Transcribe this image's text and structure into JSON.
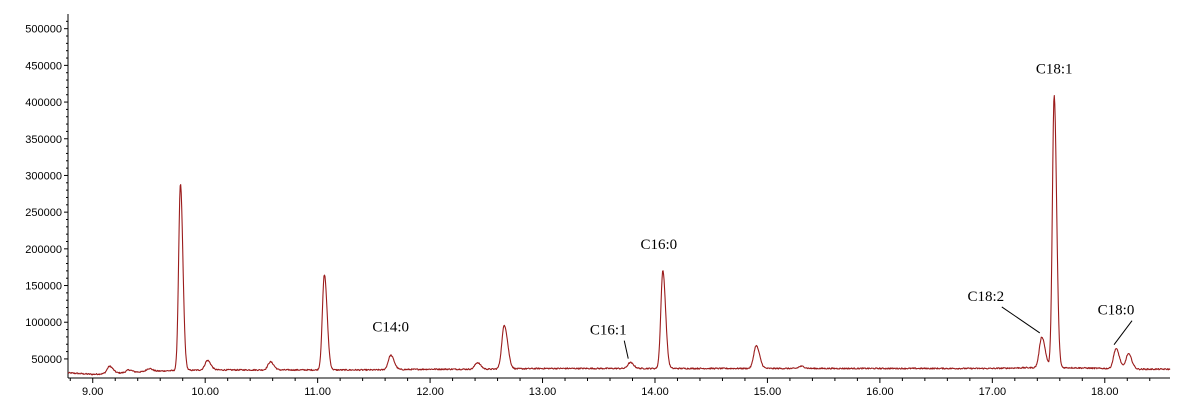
{
  "chart_data": {
    "type": "line",
    "title": "",
    "xlabel": "",
    "ylabel": "",
    "xlim": [
      8.78,
      18.58
    ],
    "ylim": [
      24000,
      520000
    ],
    "grid": false,
    "legend": "none",
    "line_color": "#9b1c1c",
    "x_ticks": [
      {
        "value": 9.0,
        "label": "9.00"
      },
      {
        "value": 10.0,
        "label": "10.00"
      },
      {
        "value": 11.0,
        "label": "11.00"
      },
      {
        "value": 12.0,
        "label": "12.00"
      },
      {
        "value": 13.0,
        "label": "13.00"
      },
      {
        "value": 14.0,
        "label": "14.00"
      },
      {
        "value": 15.0,
        "label": "15.00"
      },
      {
        "value": 16.0,
        "label": "16.00"
      },
      {
        "value": 17.0,
        "label": "17.00"
      },
      {
        "value": 18.0,
        "label": "18.00"
      }
    ],
    "y_ticks": [
      {
        "value": 50000,
        "label": "50000"
      },
      {
        "value": 100000,
        "label": "100000"
      },
      {
        "value": 150000,
        "label": "150000"
      },
      {
        "value": 200000,
        "label": "200000"
      },
      {
        "value": 250000,
        "label": "250000"
      },
      {
        "value": 300000,
        "label": "300000"
      },
      {
        "value": 350000,
        "label": "350000"
      },
      {
        "value": 400000,
        "label": "400000"
      },
      {
        "value": 450000,
        "label": "450000"
      },
      {
        "value": 500000,
        "label": "500000"
      }
    ],
    "baseline": [
      [
        8.78,
        31000
      ],
      [
        9.0,
        29000
      ],
      [
        9.5,
        33000
      ],
      [
        9.7,
        34000
      ],
      [
        10.0,
        35000
      ],
      [
        10.5,
        35000
      ],
      [
        11.0,
        35000
      ],
      [
        11.5,
        35000
      ],
      [
        12.0,
        36000
      ],
      [
        12.5,
        36000
      ],
      [
        13.0,
        37000
      ],
      [
        13.5,
        37000
      ],
      [
        14.0,
        37000
      ],
      [
        14.5,
        37000
      ],
      [
        15.0,
        37000
      ],
      [
        15.5,
        37000
      ],
      [
        16.0,
        37000
      ],
      [
        16.5,
        37000
      ],
      [
        17.0,
        37000
      ],
      [
        17.3,
        38000
      ],
      [
        17.7,
        38000
      ],
      [
        18.0,
        37000
      ],
      [
        18.3,
        36000
      ],
      [
        18.58,
        36000
      ]
    ],
    "peaks": [
      {
        "rt": 9.15,
        "height": 40000
      },
      {
        "rt": 9.32,
        "height": 35000
      },
      {
        "rt": 9.5,
        "height": 37000
      },
      {
        "rt": 9.78,
        "height": 288000
      },
      {
        "rt": 10.02,
        "height": 48000
      },
      {
        "rt": 10.58,
        "height": 46000
      },
      {
        "rt": 11.06,
        "height": 165000
      },
      {
        "rt": 11.65,
        "height": 55000
      },
      {
        "rt": 12.42,
        "height": 45000
      },
      {
        "rt": 12.66,
        "height": 96000
      },
      {
        "rt": 13.78,
        "height": 45000
      },
      {
        "rt": 14.07,
        "height": 170000
      },
      {
        "rt": 14.9,
        "height": 68000
      },
      {
        "rt": 15.3,
        "height": 40000
      },
      {
        "rt": 17.44,
        "height": 80000
      },
      {
        "rt": 17.55,
        "height": 409000
      },
      {
        "rt": 18.1,
        "height": 64000
      },
      {
        "rt": 18.21,
        "height": 57000
      }
    ],
    "annotations": [
      {
        "label": "C14:0",
        "rt": 11.65
      },
      {
        "label": "C16:1",
        "rt": 13.78
      },
      {
        "label": "C16:0",
        "rt": 14.07
      },
      {
        "label": "C18:2",
        "rt": 17.44
      },
      {
        "label": "C18:1",
        "rt": 17.55
      },
      {
        "label": "C18:0",
        "rt": 18.1
      }
    ]
  }
}
